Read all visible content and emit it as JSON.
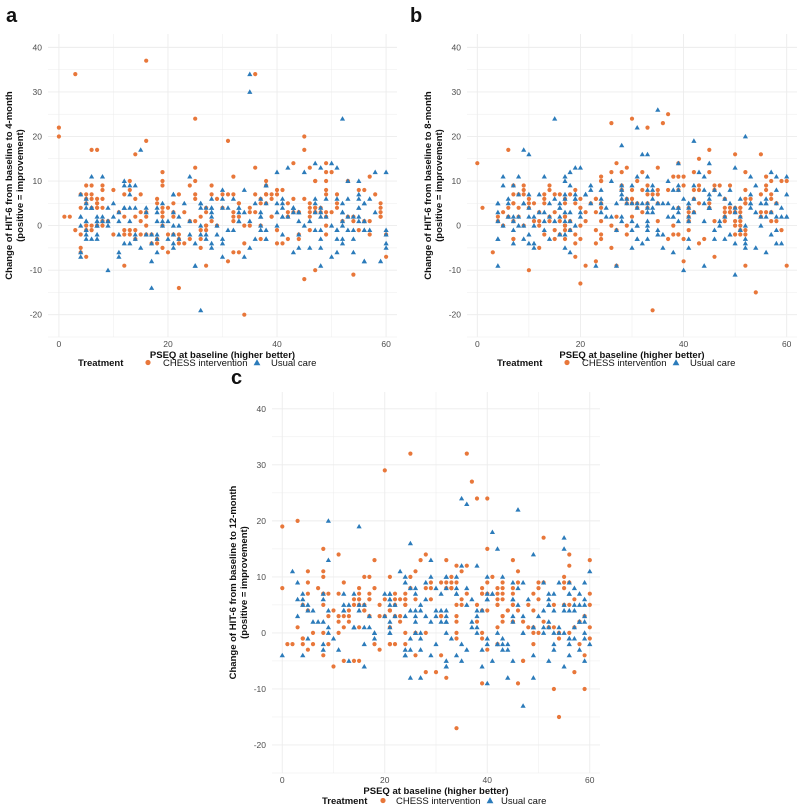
{
  "colors": {
    "chess": "#E8773A",
    "usual": "#2B7BBA",
    "grid": "#ececec"
  },
  "legend": {
    "title": "Treatment",
    "chess_label": "CHESS intervention",
    "usual_label": "Usual care"
  },
  "chart_data": [
    {
      "type": "scatter",
      "panel": "a",
      "xlabel": "PSEQ at baseline (higher better)",
      "ylabel_line1": "Change of HIT-6 from baseline to 4-month",
      "ylabel_line2": "(positive = improvement)",
      "xlim": [
        -2,
        62
      ],
      "ylim": [
        -25,
        43
      ],
      "xticks": [
        0,
        20,
        40,
        60
      ],
      "yticks": [
        -20,
        -10,
        0,
        10,
        20,
        30,
        40
      ],
      "grid": true,
      "series": [
        {
          "name": "CHESS intervention",
          "marker": "circle",
          "seed": 11,
          "n": 210,
          "mean": 3,
          "sd": 5,
          "extra": [
            [
              0,
              22
            ],
            [
              0,
              20
            ],
            [
              3,
              34
            ],
            [
              16,
              37
            ],
            [
              25,
              24
            ],
            [
              25,
              13
            ],
            [
              36,
              34
            ],
            [
              31,
              19
            ],
            [
              45,
              20
            ],
            [
              45,
              17
            ],
            [
              45,
              -12
            ],
            [
              47,
              -10
            ],
            [
              54,
              -11
            ],
            [
              22,
              -14
            ],
            [
              34,
              -20
            ],
            [
              1,
              2
            ],
            [
              2,
              2
            ],
            [
              5,
              -7
            ],
            [
              14,
              16
            ],
            [
              16,
              19
            ]
          ]
        },
        {
          "name": "Usual care",
          "marker": "triangle",
          "seed": 23,
          "n": 230,
          "mean": 2,
          "sd": 4.5,
          "extra": [
            [
              35,
              34
            ],
            [
              35,
              30
            ],
            [
              15,
              17
            ],
            [
              26,
              -19
            ],
            [
              17,
              -14
            ],
            [
              9,
              -10
            ],
            [
              52,
              24
            ],
            [
              58,
              12
            ],
            [
              50,
              14
            ],
            [
              12,
              10
            ]
          ]
        }
      ]
    },
    {
      "type": "scatter",
      "panel": "b",
      "xlabel": "PSEQ at baseline (higher better)",
      "ylabel_line1": "Change of HIT-6 from baseline to 8-month",
      "ylabel_line2": "(positive = improvement)",
      "xlim": [
        -2,
        62
      ],
      "ylim": [
        -25,
        43
      ],
      "xticks": [
        0,
        20,
        40,
        60
      ],
      "yticks": [
        -20,
        -10,
        0,
        10,
        20,
        30,
        40
      ],
      "grid": true,
      "series": [
        {
          "name": "CHESS intervention",
          "marker": "circle",
          "seed": 37,
          "n": 215,
          "mean": 3,
          "sd": 5,
          "extra": [
            [
              0,
              14
            ],
            [
              26,
              23
            ],
            [
              30,
              24
            ],
            [
              33,
              22
            ],
            [
              37,
              25
            ],
            [
              36,
              23
            ],
            [
              20,
              -13
            ],
            [
              34,
              -19
            ],
            [
              54,
              -15
            ],
            [
              10,
              -10
            ],
            [
              45,
              17
            ],
            [
              50,
              16
            ],
            [
              55,
              16
            ],
            [
              3,
              -6
            ],
            [
              1,
              4
            ]
          ]
        },
        {
          "name": "Usual care",
          "marker": "triangle",
          "seed": 41,
          "n": 230,
          "mean": 3,
          "sd": 5,
          "extra": [
            [
              35,
              26
            ],
            [
              15,
              24
            ],
            [
              31,
              22
            ],
            [
              42,
              19
            ],
            [
              52,
              20
            ],
            [
              9,
              17
            ],
            [
              10,
              16
            ],
            [
              28,
              18
            ],
            [
              40,
              -10
            ],
            [
              44,
              -9
            ],
            [
              50,
              -11
            ],
            [
              27,
              -9
            ]
          ]
        }
      ]
    },
    {
      "type": "scatter",
      "panel": "c",
      "xlabel": "PSEQ at baseline (higher better)",
      "ylabel_line1": "Change of HIT-6 from baseline to 12-month",
      "ylabel_line2": "(positive = improvement)",
      "xlim": [
        -2,
        62
      ],
      "ylim": [
        -25,
        43
      ],
      "xticks": [
        0,
        20,
        40,
        60
      ],
      "yticks": [
        -20,
        -10,
        0,
        10,
        20,
        30,
        40
      ],
      "grid": true,
      "series": [
        {
          "name": "CHESS intervention",
          "marker": "circle",
          "seed": 53,
          "n": 215,
          "mean": 4,
          "sd": 5,
          "extra": [
            [
              0,
              19
            ],
            [
              0,
              8
            ],
            [
              3,
              20
            ],
            [
              20,
              29
            ],
            [
              25,
              32
            ],
            [
              36,
              32
            ],
            [
              37,
              27
            ],
            [
              38,
              24
            ],
            [
              40,
              24
            ],
            [
              34,
              -17
            ],
            [
              54,
              -15
            ],
            [
              53,
              -10
            ],
            [
              59,
              -10
            ],
            [
              1,
              -2
            ],
            [
              2,
              -2
            ]
          ]
        },
        {
          "name": "Usual care",
          "marker": "triangle",
          "seed": 61,
          "n": 225,
          "mean": 3,
          "sd": 5,
          "extra": [
            [
              35,
              24
            ],
            [
              36,
              23
            ],
            [
              46,
              22
            ],
            [
              9,
              20
            ],
            [
              15,
              19
            ],
            [
              47,
              -13
            ],
            [
              41,
              18
            ],
            [
              55,
              17
            ],
            [
              60,
              11
            ],
            [
              2,
              11
            ],
            [
              0,
              -4
            ]
          ]
        }
      ]
    }
  ]
}
